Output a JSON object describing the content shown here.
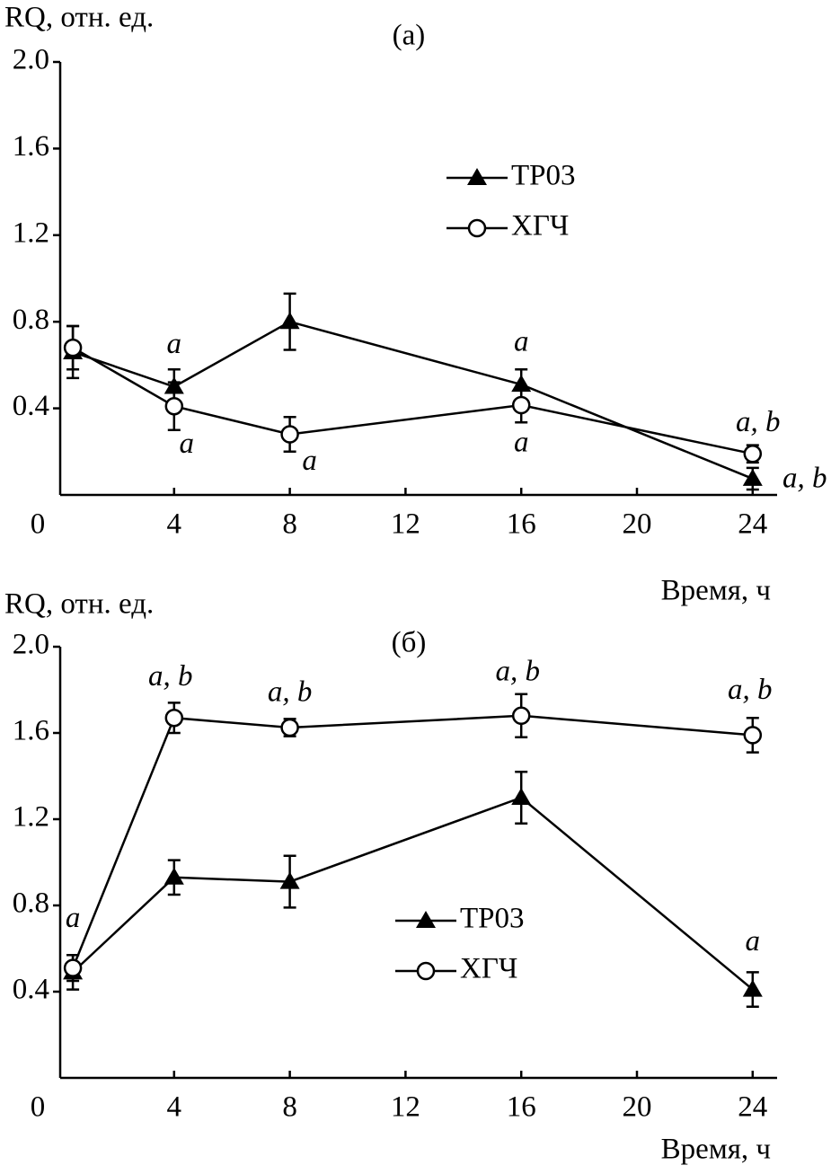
{
  "chart_data": [
    {
      "type": "line",
      "title": "(a)",
      "ylabel": "RQ, отн. ед.",
      "xlabel": "Время, ч",
      "xlim": [
        0,
        25
      ],
      "ylim": [
        0,
        2.0
      ],
      "xticks": [
        0,
        4,
        8,
        12,
        16,
        20,
        24
      ],
      "yticks": [
        0.4,
        0.8,
        1.2,
        1.6,
        {
          "value": 2.0,
          "label": "2.0"
        }
      ],
      "x": [
        0.5,
        4,
        8,
        16,
        24
      ],
      "legend": "center right",
      "series": [
        {
          "name": "ТР03",
          "color": "#000000",
          "marker": "triangle",
          "values": [
            0.66,
            0.5,
            0.8,
            0.51,
            0.075
          ],
          "errors": [
            0.12,
            0.08,
            0.13,
            0.07,
            0.05
          ],
          "labels": [
            null,
            "a",
            null,
            "a",
            "a, b"
          ]
        },
        {
          "name": "ХГЧ",
          "color": "#000000",
          "marker": "circle",
          "values": [
            0.68,
            0.41,
            0.28,
            0.415,
            0.19
          ],
          "errors": [
            0.1,
            0.11,
            0.08,
            0.08,
            0.04
          ],
          "labels": [
            null,
            "a",
            "a",
            "a",
            "a, b"
          ]
        }
      ]
    },
    {
      "type": "line",
      "title": "(б)",
      "ylabel": "RQ, отн. ед.",
      "xlabel": "Время, ч",
      "xlim": [
        0,
        25
      ],
      "ylim": [
        0,
        2.0
      ],
      "xticks": [
        0,
        4,
        8,
        12,
        16,
        20,
        24
      ],
      "yticks": [
        0.4,
        0.8,
        1.2,
        1.6,
        {
          "value": 2.0,
          "label": "2.0"
        }
      ],
      "x": [
        0.5,
        4,
        8,
        16,
        24
      ],
      "legend": "lower center",
      "series": [
        {
          "name": "ТР03",
          "color": "#000000",
          "marker": "triangle",
          "values": [
            0.49,
            0.93,
            0.91,
            1.3,
            0.41
          ],
          "errors": [
            0.08,
            0.08,
            0.12,
            0.12,
            0.08
          ],
          "labels": [
            "a",
            null,
            null,
            null,
            "a"
          ]
        },
        {
          "name": "ХГЧ",
          "color": "#000000",
          "marker": "circle",
          "values": [
            0.51,
            1.67,
            1.625,
            1.68,
            1.59
          ],
          "errors": [
            0.06,
            0.07,
            0.04,
            0.1,
            0.08
          ],
          "labels": [
            null,
            "a, b",
            "a, b",
            "a, b",
            "a, b"
          ]
        }
      ]
    }
  ]
}
